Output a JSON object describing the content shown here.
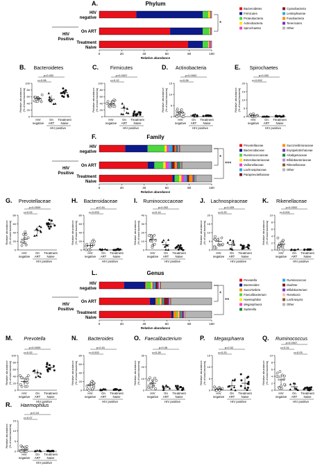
{
  "colors": {
    "Bacteroidetes": "#e8111b",
    "Firmicutes": "#0c1a8a",
    "Proteobacteria": "#4cd640",
    "Actinobacteria": "#ffe600",
    "Spirochaetes": "#ff3cc8",
    "Cyanobacteria": "#7a1a28",
    "Lentisphaerae": "#27a9e1",
    "Fusobacteria": "#ff8c00",
    "Tenericutes": "#7b2fbe",
    "Other": "#b4b4b4",
    "Prevotellaceae": "#e8111b",
    "Bacteroidaceae": "#0c1a8a",
    "Ruminococcaceae": "#4cd640",
    "Enterobacteriaceae": "#ffe600",
    "Veillonellaceae": "#ff3cc8",
    "Lachnospiraceae": "#27a9e1",
    "Paraprevotellaceae": "#7a1a28",
    "Succinivibrionaceae": "#ff8c00",
    "Erysipelotrichaceae": "#7b2fbe",
    "Alcaligenaceae": "#1a8a3a",
    "Bifidobacteriaceae": "#b28bd8",
    "Rikenellaceae": "#8a5a2b",
    "Prevotella": "#e8111b",
    "Bacteroides": "#0c1a8a",
    "Succinivibrio": "#ff8c00",
    "Faecalibacterium": "#4cd640",
    "Haemophilus": "#ffe600",
    "Megasphaera": "#ff3cc8",
    "Sutterella": "#1a8a3a",
    "Ruminococcus": "#27a9e1",
    "Dialister": "#7a1a28",
    "Bifidobacterium": "#7b2fbe",
    "Roseburia": "#ffb6c1",
    "Lachnospira": "#8a5a2b",
    "scatter": "#111111",
    "line": "#111111"
  },
  "chart_data": [
    {
      "id": "A",
      "type": "bar",
      "orientation": "horizontal",
      "stacked": true,
      "title": "Phylum",
      "xlabel": "Relative abundance",
      "xlim": [
        0,
        100
      ],
      "xticks": [
        "0",
        "20",
        "40",
        "60",
        "80",
        "100"
      ],
      "categories": [
        "HIV negative",
        "On ART",
        "Treatment Naive"
      ],
      "group_labels": {
        "negative": [
          "HIV",
          "negative"
        ],
        "positive": [
          "HIV",
          "Positive"
        ],
        "on_art": "On ART",
        "naive": [
          "Treatment",
          "Naive"
        ]
      },
      "significance": "*",
      "legend": [
        "Bacteroidetes",
        "Firmicutes",
        "Proteobacteria",
        "Actinobacteria",
        "Spirochaetes",
        "Cyanobacteria",
        "Lentisphaerae",
        "Fusobacteria",
        "Tenericutes",
        "Other"
      ],
      "series": [
        {
          "name": "Bacteroidetes",
          "values": [
            33,
            63,
            79
          ]
        },
        {
          "name": "Firmicutes",
          "values": [
            59,
            29,
            13
          ]
        },
        {
          "name": "Proteobacteria",
          "values": [
            5,
            6,
            5
          ]
        },
        {
          "name": "Actinobacteria",
          "values": [
            1.5,
            0.6,
            0.5
          ]
        },
        {
          "name": "Spirochaetes",
          "values": [
            0.5,
            0.5,
            1.5
          ]
        },
        {
          "name": "Cyanobacteria",
          "values": [
            0.3,
            0.3,
            0.3
          ]
        },
        {
          "name": "Lentisphaerae",
          "values": [
            0.2,
            0.2,
            0.2
          ]
        },
        {
          "name": "Fusobacteria",
          "values": [
            0.2,
            0.2,
            0.2
          ]
        },
        {
          "name": "Tenericutes",
          "values": [
            0.2,
            0.1,
            0.2
          ]
        },
        {
          "name": "Other",
          "values": [
            0.1,
            0.1,
            0.1
          ]
        }
      ]
    },
    {
      "id": "B",
      "type": "scatter",
      "title": "Bacteroidetes",
      "ylabel": "Relative abundance (% of total bacteria)",
      "ylim": [
        0,
        100
      ],
      "yticks": [
        0,
        20,
        40,
        60,
        80,
        100
      ],
      "groups": [
        "HIV negative",
        "On ART",
        "Treatment Naive"
      ],
      "xgroup": "HIV positive",
      "pvalues": [
        {
          "from": 0,
          "to": 2,
          "text": "p=0.002"
        },
        {
          "from": 0,
          "to": 1,
          "text": "p=0.08"
        }
      ],
      "points": [
        [
          14,
          55
        ],
        [
          15,
          60
        ],
        [
          20,
          58
        ],
        [
          33,
          62
        ],
        [
          35,
          50
        ],
        [
          38,
          65
        ],
        [
          40,
          55
        ],
        [
          42,
          52
        ],
        [
          48,
          58
        ],
        [
          50,
          60
        ],
        [
          52,
          56
        ],
        [
          55,
          45
        ],
        [
          60,
          50
        ]
      ],
      "points2": [
        [
          5,
          30
        ],
        [
          25,
          45
        ],
        [
          38,
          55
        ],
        [
          45,
          65
        ],
        [
          55,
          60
        ],
        [
          68,
          70
        ],
        [
          78,
          62
        ],
        [
          85,
          50
        ]
      ],
      "points3": [
        [
          50,
          60
        ],
        [
          62,
          70
        ],
        [
          70,
          72
        ],
        [
          75,
          68
        ],
        [
          78,
          80
        ],
        [
          80,
          75
        ],
        [
          82,
          65
        ],
        [
          88,
          60
        ],
        [
          90,
          85
        ],
        [
          92,
          78
        ],
        [
          95,
          70
        ]
      ]
    },
    {
      "id": "C",
      "type": "scatter",
      "title": "Firmicutes",
      "ylabel": "Relative abundance (% of total bacteria)",
      "ylim": [
        0,
        100
      ],
      "yticks": [
        0,
        20,
        40,
        60,
        80,
        100
      ],
      "groups": [
        "HIV negative",
        "On ART",
        "Treatment Naive"
      ],
      "xgroup": "HIV positive",
      "pvalues": [
        {
          "from": 0,
          "to": 2,
          "text": "p=0.0007"
        },
        {
          "from": 0,
          "to": 1,
          "text": "p=0.12"
        }
      ]
    },
    {
      "id": "D",
      "type": "scatter",
      "title": "Actinobacteria",
      "ylabel": "Relative abundance (% of total bacteria)",
      "ylim": [
        0,
        15
      ],
      "yticks": [
        0,
        5,
        10,
        15
      ],
      "groups": [
        "HIV negative",
        "On ART",
        "Treatment Naive"
      ],
      "xgroup": "HIV positive",
      "pvalues": [
        {
          "from": 0,
          "to": 2,
          "text": "p=0.0002"
        },
        {
          "from": 0,
          "to": 1,
          "text": "p=0.06"
        }
      ]
    },
    {
      "id": "E",
      "type": "scatter",
      "title": "Spirochaetes",
      "ylabel": "Relative abundance (% of total bacteria)",
      "ylim": [
        0,
        20
      ],
      "yticks": [
        0,
        5,
        10,
        15,
        20
      ],
      "groups": [
        "HIV negative",
        "On ART",
        "Treatment Naive"
      ],
      "xgroup": "HIV positive",
      "pvalues": [
        {
          "from": 0,
          "to": 2,
          "text": "p=0.002"
        },
        {
          "from": 0,
          "to": 1,
          "text": "p=0.002"
        }
      ]
    },
    {
      "id": "F",
      "type": "bar",
      "orientation": "horizontal",
      "stacked": true,
      "title": "Family",
      "xlabel": "Relative abundance",
      "xlim": [
        0,
        100
      ],
      "xticks": [
        "0",
        "20",
        "40",
        "60",
        "80",
        "100"
      ],
      "categories": [
        "HIV negative",
        "On ART",
        "Treatment Naive"
      ],
      "significance": [
        "*",
        "***"
      ],
      "legend": [
        "Prevotellaceae",
        "Bacteroidaceae",
        "Ruminococcaceae",
        "Enterobacteriaceae",
        "Veillonellaceae",
        "Lachnospiraceae",
        "Paraprevotellaceae",
        "Succinivibrionaceae",
        "Erysipelotrichaceae",
        "Alcaligenaceae",
        "Bifidobacteriaceae",
        "Rikenellaceae",
        "Other"
      ],
      "series": [
        {
          "name": "Prevotellaceae",
          "values": [
            23,
            43,
            65
          ]
        },
        {
          "name": "Bacteroidaceae",
          "values": [
            20,
            6,
            2
          ]
        },
        {
          "name": "Ruminococcaceae",
          "values": [
            15,
            8,
            4
          ]
        },
        {
          "name": "Enterobacteriaceae",
          "values": [
            2,
            2,
            2
          ]
        },
        {
          "name": "Veillonellaceae",
          "values": [
            2,
            3,
            3
          ]
        },
        {
          "name": "Lachnospiraceae",
          "values": [
            3,
            2,
            2
          ]
        },
        {
          "name": "Paraprevotellaceae",
          "values": [
            2,
            3,
            2
          ]
        },
        {
          "name": "Succinivibrionaceae",
          "values": [
            1,
            2,
            3
          ]
        },
        {
          "name": "Erysipelotrichaceae",
          "values": [
            1,
            1,
            1
          ]
        },
        {
          "name": "Alcaligenaceae",
          "values": [
            1,
            2,
            1
          ]
        },
        {
          "name": "Bifidobacteriaceae",
          "values": [
            1,
            1,
            1
          ]
        },
        {
          "name": "Rikenellaceae",
          "values": [
            1,
            1,
            0.5
          ]
        },
        {
          "name": "Other",
          "values": [
            28,
            26,
            13.5
          ]
        }
      ]
    },
    {
      "id": "G",
      "type": "scatter",
      "title": "Prevotellaceae",
      "ylabel": "Relative abundance (% of total bacteria)",
      "ylim": [
        0,
        80
      ],
      "yticks": [
        0,
        20,
        40,
        60,
        80
      ],
      "groups": [
        "HIV negative",
        "On ART",
        "Treatment Naive"
      ],
      "xgroup": "HIV positive",
      "pvalues": [
        {
          "from": 0,
          "to": 2,
          "text": "p=0.0009"
        },
        {
          "from": 0,
          "to": 1,
          "text": "p=0.02"
        }
      ]
    },
    {
      "id": "H",
      "type": "scatter",
      "title": "Bacteroidaceae",
      "ylabel": "Relative abundance (% of total bacteria)",
      "ylim": [
        0,
        80
      ],
      "yticks": [
        0,
        20,
        40,
        60,
        80
      ],
      "groups": [
        "HIV negative",
        "On ART",
        "Treatment Naive"
      ],
      "xgroup": "HIV positive",
      "pvalues": [
        {
          "from": 0,
          "to": 2,
          "text": "p=0.01"
        },
        {
          "from": 0,
          "to": 1,
          "text": "p=0.003"
        }
      ]
    },
    {
      "id": "I",
      "type": "scatter",
      "title": "Ruminococcaceae",
      "ylabel": "Relative abundance (% of total bacteria)",
      "ylim": [
        0,
        40
      ],
      "yticks": [
        0,
        10,
        20,
        30,
        40
      ],
      "groups": [
        "HIV negative",
        "On ART",
        "Treatment Naive"
      ],
      "xgroup": "HIV positive",
      "pvalues": [
        {
          "from": 0,
          "to": 2,
          "text": "p=0.002"
        },
        {
          "from": 0,
          "to": 1,
          "text": "p=0.14"
        }
      ]
    },
    {
      "id": "J",
      "type": "scatter",
      "title": "Lachnospiraceae",
      "ylabel": "Relative abundance (% of total bacteria)",
      "ylim": [
        0,
        20
      ],
      "yticks": [
        0,
        5,
        10,
        15,
        20
      ],
      "groups": [
        "HIV negative",
        "On ART",
        "Treatment Naive"
      ],
      "xgroup": "HIV positive",
      "pvalues": [
        {
          "from": 0,
          "to": 2,
          "text": "p=0.009"
        },
        {
          "from": 0,
          "to": 1,
          "text": "p=0.20"
        }
      ]
    },
    {
      "id": "K",
      "type": "scatter",
      "title": "Rikenellaceae",
      "ylabel": "Relative abundance (% of total bacteria)",
      "ylim": [
        0,
        10
      ],
      "yticks": [
        0,
        2,
        4,
        6,
        8,
        10
      ],
      "groups": [
        "HIV negative",
        "On ART",
        "Treatment Naive"
      ],
      "xgroup": "HIV positive",
      "pvalues": [
        {
          "from": 0,
          "to": 2,
          "text": "p=0.0002"
        },
        {
          "from": 0,
          "to": 1,
          "text": "p=0.001"
        }
      ]
    },
    {
      "id": "L",
      "type": "bar",
      "orientation": "horizontal",
      "stacked": true,
      "title": "Genus",
      "xlabel": "Relative abundance",
      "xlim": [
        0,
        100
      ],
      "xticks": [
        "0",
        "20",
        "40",
        "60",
        "80",
        "100"
      ],
      "categories": [
        "HIV negative",
        "On ART",
        "Treatment Naive"
      ],
      "significance": [
        "*",
        "**"
      ],
      "legend": [
        "Prevotella",
        "Bacteroides",
        "Succinivibrio",
        "Faecalibacterium",
        "Haemophilus",
        "Megasphaera",
        "Sutterella",
        "Ruminococcus",
        "Dialister",
        "Bifidobacterium",
        "Roseburia",
        "Lachnospira",
        "Other"
      ],
      "series": [
        {
          "name": "Prevotella",
          "values": [
            22,
            45,
            64
          ]
        },
        {
          "name": "Bacteroides",
          "values": [
            19,
            5,
            2
          ]
        },
        {
          "name": "Succinivibrio",
          "values": [
            1,
            2,
            3
          ]
        },
        {
          "name": "Faecalibacterium",
          "values": [
            4,
            2,
            1
          ]
        },
        {
          "name": "Haemophilus",
          "values": [
            1,
            1,
            1
          ]
        },
        {
          "name": "Megasphaera",
          "values": [
            1,
            1,
            1
          ]
        },
        {
          "name": "Sutterella",
          "values": [
            1,
            1,
            1
          ]
        },
        {
          "name": "Ruminococcus",
          "values": [
            1,
            0.5,
            0.5
          ]
        },
        {
          "name": "Dialister",
          "values": [
            2,
            4,
            1
          ]
        },
        {
          "name": "Bifidobacterium",
          "values": [
            1,
            1,
            1
          ]
        },
        {
          "name": "Roseburia",
          "values": [
            1,
            0.5,
            0.5
          ]
        },
        {
          "name": "Lachnospira",
          "values": [
            1,
            1,
            0.5
          ]
        },
        {
          "name": "Other",
          "values": [
            45,
            36,
            23.5
          ]
        }
      ]
    },
    {
      "id": "M",
      "type": "scatter",
      "title": "Prevotella",
      "italic": true,
      "ylabel": "Relative abundance (% of total bacteria)",
      "ylim": [
        0,
        100
      ],
      "yticks": [
        0,
        20,
        40,
        60,
        80,
        100
      ],
      "groups": [
        "HIV negative",
        "On ART",
        "Treatment Naive"
      ],
      "xgroup": "HIV positive",
      "pvalues": [
        {
          "from": 0,
          "to": 2,
          "text": "p=0.0009"
        },
        {
          "from": 0,
          "to": 1,
          "text": "p=0.02"
        }
      ]
    },
    {
      "id": "N",
      "type": "scatter",
      "title": "Bacteroides",
      "italic": true,
      "ylabel": "Relative abundance (% of total bacteria)",
      "ylim": [
        0,
        80
      ],
      "yticks": [
        0,
        20,
        40,
        60,
        80
      ],
      "groups": [
        "HIV negative",
        "On ART",
        "Treatment Naive"
      ],
      "xgroup": "HIV positive",
      "pvalues": [
        {
          "from": 0,
          "to": 2,
          "text": "p=0.01"
        },
        {
          "from": 0,
          "to": 1,
          "text": "p=0.002"
        }
      ]
    },
    {
      "id": "O",
      "type": "scatter",
      "title": "Faecalibacterium",
      "italic": true,
      "ylabel": "Relative abundance (% of total bacteria)",
      "ylim": [
        0,
        30
      ],
      "yticks": [
        0,
        10,
        20,
        30
      ],
      "groups": [
        "HIV negative",
        "On ART",
        "Treatment Naive"
      ],
      "xgroup": "HIV positive",
      "pvalues": [
        {
          "from": 0,
          "to": 2,
          "text": "p=0.06"
        },
        {
          "from": 0,
          "to": 1,
          "text": "p=0.28"
        }
      ]
    },
    {
      "id": "P",
      "type": "scatter",
      "title": "Megasphaera",
      "italic": true,
      "ylabel": "Relative abundance (% of total bacteria)",
      "ylim": [
        0,
        15
      ],
      "yticks": [
        0,
        5,
        10,
        15
      ],
      "groups": [
        "HIV negative",
        "On ART",
        "Treatment Naive"
      ],
      "xgroup": "HIV positive",
      "pvalues": [
        {
          "from": 0,
          "to": 2,
          "text": "p=0.02"
        },
        {
          "from": 0,
          "to": 1,
          "text": "p=0.20"
        }
      ]
    },
    {
      "id": "Q",
      "type": "scatter",
      "title": "Ruminococcus",
      "italic": true,
      "ylabel": "Relative abundance (% of total bacteria)",
      "ylim": [
        0,
        10
      ],
      "yticks": [
        0,
        2,
        4,
        6,
        8,
        10
      ],
      "groups": [
        "HIV negative",
        "On ART",
        "Treatment Naive"
      ],
      "xgroup": "HIV positive",
      "pvalues": [
        {
          "from": 0,
          "to": 2,
          "text": "p=0.0007"
        },
        {
          "from": 0,
          "to": 1,
          "text": "p=0.31"
        },
        {
          "from": 1,
          "to": 2,
          "text": "p=0.03"
        }
      ]
    },
    {
      "id": "R",
      "type": "scatter",
      "title": "Haemophilus",
      "italic": true,
      "ylabel": "Relative abundance (% of total bacteria)",
      "ylim": [
        0,
        15
      ],
      "yticks": [
        0,
        5,
        10,
        15
      ],
      "groups": [
        "HIV negative",
        "On ART",
        "Treatment Naive"
      ],
      "xgroup": "HIV positive",
      "pvalues": [
        {
          "from": 0,
          "to": 2,
          "text": "p=0.10"
        },
        {
          "from": 0,
          "to": 1,
          "text": "p=0.07"
        }
      ]
    }
  ]
}
